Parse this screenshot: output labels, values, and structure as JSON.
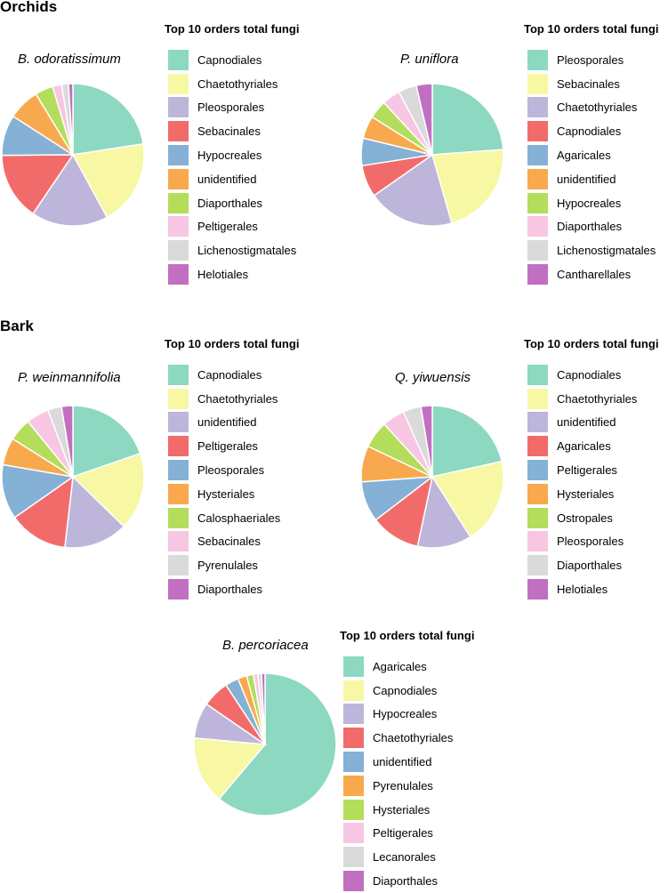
{
  "sections": [
    {
      "title": "Orchids",
      "panels": [
        0,
        1
      ]
    },
    {
      "title": "Bark",
      "panels": [
        2,
        3
      ]
    }
  ],
  "colors": [
    "#8dd8c0",
    "#f7f7a4",
    "#bdb6da",
    "#f26b6b",
    "#84b1d5",
    "#f8a94d",
    "#b3dd5a",
    "#f7c6e2",
    "#dadada",
    "#c16fc1"
  ],
  "chart_data": [
    {
      "type": "pie",
      "title": "B. odoratissimum",
      "legend_title": "Top 10 orders total fungi",
      "categories": [
        "Capnodiales",
        "Chaetothyriales",
        "Pleosporales",
        "Sebacinales",
        "Hypocreales",
        "unidentified",
        "Diaporthales",
        "Peltigerales",
        "Lichenostigmatales",
        "Helotiales"
      ],
      "values": [
        22,
        19,
        17,
        15,
        9,
        7,
        4,
        2,
        1.5,
        1
      ]
    },
    {
      "type": "pie",
      "title": "P. uniflora",
      "legend_title": "Top 10 orders total fungi",
      "categories": [
        "Pleosporales",
        "Sebacinales",
        "Chaetothyriales",
        "Capnodiales",
        "Agaricales",
        "unidentified",
        "Hypocreales",
        "Diaporthales",
        "Lichenostigmatales",
        "Cantharellales"
      ],
      "values": [
        23,
        21,
        19,
        7,
        6,
        5,
        4,
        4,
        4,
        3.5
      ]
    },
    {
      "type": "pie",
      "title": "P. weinmannifolia",
      "legend_title": "Top 10 orders total fungi",
      "categories": [
        "Capnodiales",
        "Chaetothyriales",
        "unidentified",
        "Peltigerales",
        "Pleosporales",
        "Hysteriales",
        "Calosphaeriales",
        "Sebacinales",
        "Pyrenulales",
        "Diaporthales"
      ],
      "values": [
        19,
        17,
        14,
        13,
        12,
        6,
        5,
        5,
        3,
        2.5
      ]
    },
    {
      "type": "pie",
      "title": "Q. yiwuensis",
      "legend_title": "Top 10 orders total fungi",
      "categories": [
        "Capnodiales",
        "Chaetothyriales",
        "unidentified",
        "Agaricales",
        "Peltigerales",
        "Hysteriales",
        "Ostropales",
        "Pleosporales",
        "Diaporthales",
        "Helotiales"
      ],
      "values": [
        21,
        19,
        12,
        11,
        9,
        8,
        6,
        5,
        4,
        2.5
      ]
    },
    {
      "type": "pie",
      "title": "B. percoriacea",
      "legend_title": "Top 10 orders total fungi",
      "categories": [
        "Agaricales",
        "Capnodiales",
        "Hypocreales",
        "Chaetothyriales",
        "unidentified",
        "Pyrenulales",
        "Hysteriales",
        "Peltigerales",
        "Lecanorales",
        "Diaporthales"
      ],
      "values": [
        60,
        15,
        8,
        6,
        3,
        2,
        1.5,
        1,
        0.8,
        0.8
      ]
    }
  ]
}
